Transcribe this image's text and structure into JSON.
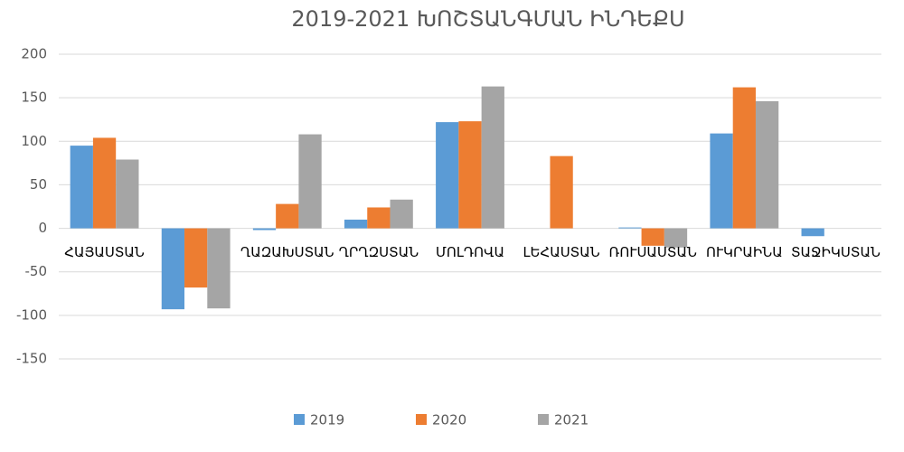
{
  "chart_data": {
    "type": "bar",
    "title": "2019-2021 ԽՈՇՏԱՆԳՄԱՆ ԻՆԴԵՔՍ",
    "categories": [
      "ՀԱՅԱՍՏԱՆ",
      null,
      "ՂԱԶԱԽՍՏԱՆ",
      "ՂՐՂԶՍՏԱՆ",
      "ՄՈԼԴՈՎԱ",
      "ԼԵՀԱՍՏԱՆ",
      "ՌՈՒՍԱՍՏԱՆ",
      "ՈՒԿՐԱԻՆԱ",
      "ՏԱՋԻԿՍՏԱՆ"
    ],
    "series": [
      {
        "name": "2019",
        "color": "#5b9bd5",
        "values": [
          95,
          -93,
          -2,
          10,
          122,
          null,
          1,
          109,
          -9
        ]
      },
      {
        "name": "2020",
        "color": "#ed7d31",
        "values": [
          104,
          -68,
          28,
          24,
          123,
          83,
          -20,
          162,
          null
        ]
      },
      {
        "name": "2021",
        "color": "#a5a5a5",
        "values": [
          79,
          -92,
          108,
          33,
          163,
          null,
          -22,
          146,
          null
        ]
      }
    ],
    "ylim": [
      -150,
      200
    ],
    "yticks": [
      -150,
      -100,
      -50,
      0,
      50,
      100,
      150,
      200
    ],
    "grid": true,
    "legend": "bottom"
  }
}
